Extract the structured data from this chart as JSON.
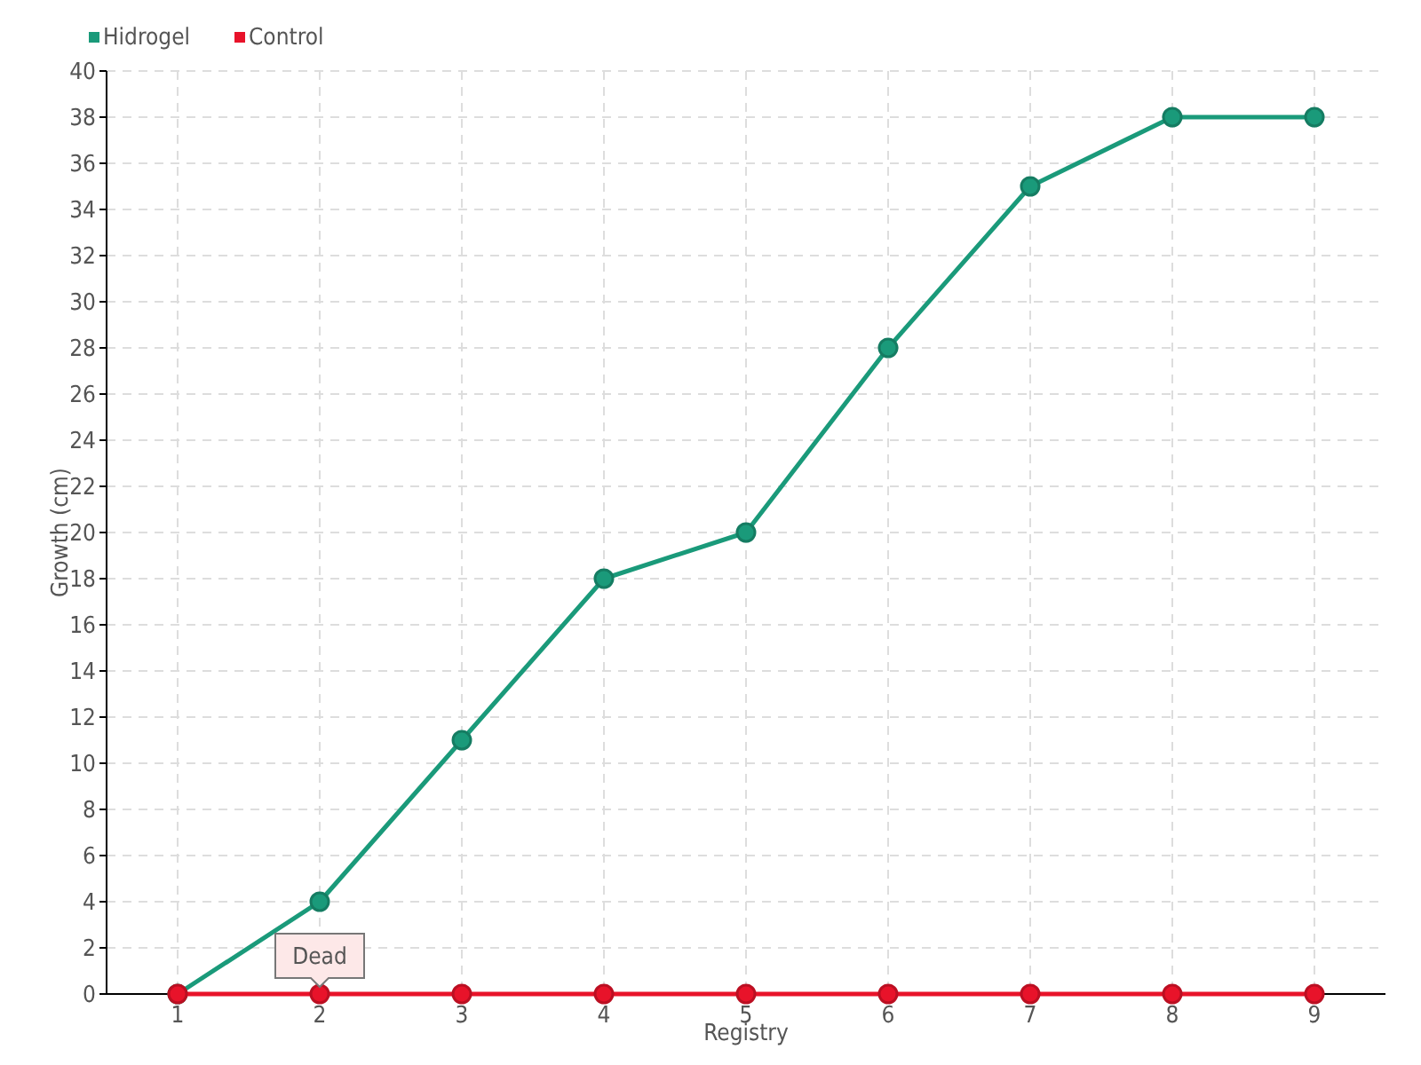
{
  "chart_data": {
    "type": "line",
    "xlabel": "Registry",
    "ylabel": "Growth (cm)",
    "x": [
      1,
      2,
      3,
      4,
      5,
      6,
      7,
      8,
      9
    ],
    "xlim": [
      0.5,
      9.5
    ],
    "xticks": [
      1,
      2,
      3,
      4,
      5,
      6,
      7,
      8,
      9
    ],
    "ylim": [
      0,
      40
    ],
    "yticks": [
      0,
      2,
      4,
      6,
      8,
      10,
      12,
      14,
      16,
      18,
      20,
      22,
      24,
      26,
      28,
      30,
      32,
      34,
      36,
      38,
      40
    ],
    "grid": true,
    "legend": "top left",
    "marker": "circle",
    "line_style": "solid",
    "series": [
      {
        "name": "Hidrogel",
        "color": "#1a9a7a",
        "values": [
          0,
          4,
          11,
          18,
          20,
          28,
          35,
          38,
          38
        ]
      },
      {
        "name": "Control",
        "color": "#e8132a",
        "values": [
          0,
          0,
          0,
          0,
          0,
          0,
          0,
          0,
          0
        ]
      }
    ],
    "annotations": [
      {
        "text": "Dead",
        "x": 2,
        "y": 0
      }
    ]
  }
}
